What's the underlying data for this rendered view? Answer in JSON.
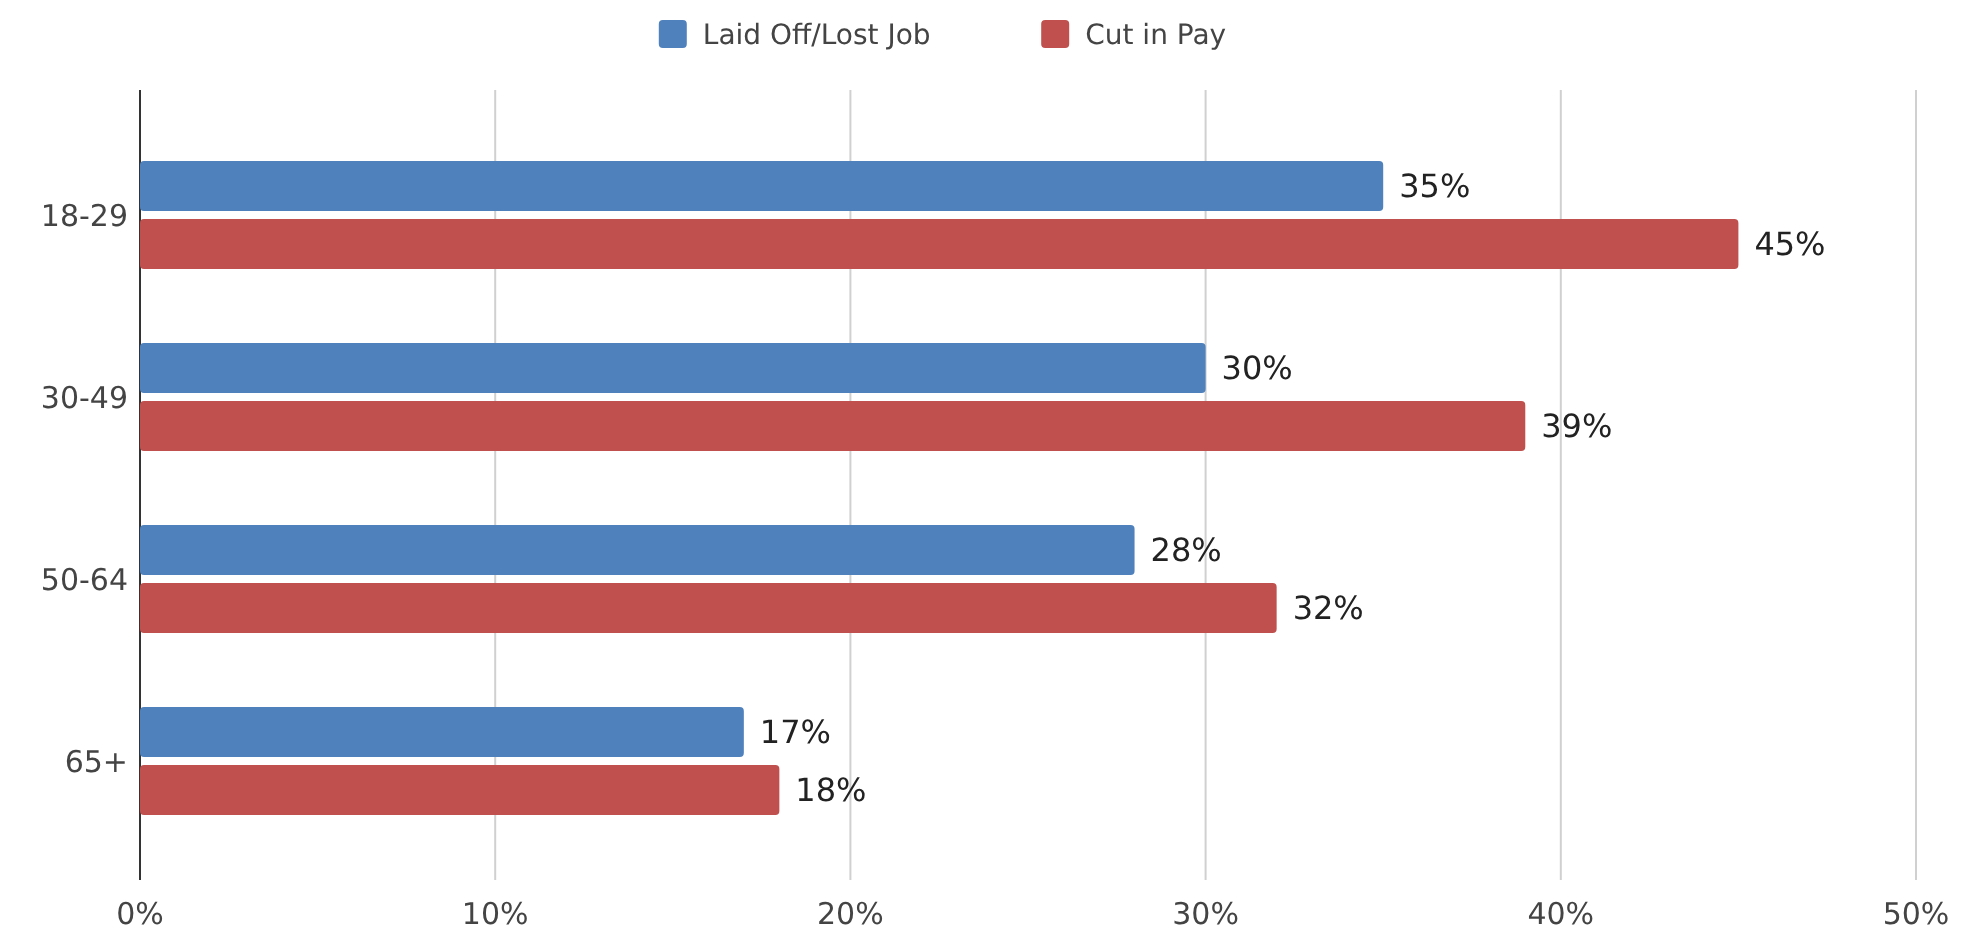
{
  "chart_data": {
    "type": "bar",
    "orientation": "horizontal",
    "categories": [
      "18-29",
      "30-49",
      "50-64",
      "65+"
    ],
    "series": [
      {
        "name": "Laid Off/Lost Job",
        "color": "#4f81bd",
        "values": [
          35,
          30,
          28,
          17
        ],
        "value_labels": [
          "35%",
          "30%",
          "28%",
          "17%"
        ]
      },
      {
        "name": "Cut in Pay",
        "color": "#c0504d",
        "values": [
          45,
          39,
          32,
          18
        ],
        "value_labels": [
          "45%",
          "39%",
          "32%",
          "18%"
        ]
      }
    ],
    "xlim": [
      0,
      50
    ],
    "xticks": [
      {
        "value": 0,
        "label": "0%"
      },
      {
        "value": 10,
        "label": "10%"
      },
      {
        "value": 20,
        "label": "20%"
      },
      {
        "value": 30,
        "label": "30%"
      },
      {
        "value": 40,
        "label": "40%"
      },
      {
        "value": 50,
        "label": "50%"
      }
    ],
    "grid": "x",
    "legend": "top"
  }
}
